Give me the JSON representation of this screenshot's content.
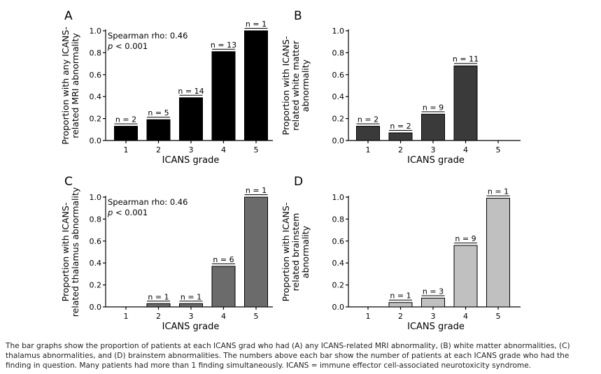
{
  "caption": "The bar graphs show the proportion of patients at each ICANS grad who had (A) any ICANS-related MRI abnormality, (B) white matter abnormalities, (C) thalamus abnormalities, and (D) brainstem abnormalities. The numbers above each bar show the number of patients at each ICANS grade who had the finding in question. Many patients had more than 1 finding simultaneously. ICANS = immune effector cell-associated neurotoxicity syndrome.",
  "chart_data": [
    {
      "panel": "A",
      "type": "bar",
      "categories": [
        "1",
        "2",
        "3",
        "4",
        "5"
      ],
      "values": [
        0.13,
        0.19,
        0.39,
        0.81,
        1.0
      ],
      "bar_labels": [
        "n = 2",
        "n = 5",
        "n = 14",
        "n = 13",
        "n = 1"
      ],
      "xlabel": "ICANS grade",
      "ylabel": [
        "Proportion with any ICANS-",
        "related MRI abnormality"
      ],
      "annotation": [
        "Spearman rho: 0.46",
        "p < 0.001"
      ],
      "ylim": [
        0,
        1.0
      ],
      "yticks": [
        "0.0",
        "0.2",
        "0.4",
        "0.6",
        "0.8",
        "1.0"
      ],
      "color": "#000000"
    },
    {
      "panel": "B",
      "type": "bar",
      "categories": [
        "1",
        "2",
        "3",
        "4",
        "5"
      ],
      "values": [
        0.13,
        0.07,
        0.24,
        0.68,
        null
      ],
      "bar_labels": [
        "n = 2",
        "n = 2",
        "n = 9",
        "n = 11",
        ""
      ],
      "xlabel": "ICANS grade",
      "ylabel": [
        "Proportion with ICANS-",
        "related white matter",
        "abnormality"
      ],
      "annotation": [],
      "ylim": [
        0,
        1.0
      ],
      "yticks": [
        "0.0",
        "0.2",
        "0.4",
        "0.6",
        "0.8",
        "1.0"
      ],
      "color": "#3a3a3a"
    },
    {
      "panel": "C",
      "type": "bar",
      "categories": [
        "1",
        "2",
        "3",
        "4",
        "5"
      ],
      "values": [
        null,
        0.03,
        0.03,
        0.37,
        1.0
      ],
      "bar_labels": [
        "",
        "n = 1",
        "n = 1",
        "n = 6",
        "n = 1"
      ],
      "xlabel": "ICANS grade",
      "ylabel": [
        "Proportion with ICANS-",
        "related thalamus abnormality"
      ],
      "annotation": [
        "Spearman rho: 0.46",
        "p < 0.001"
      ],
      "ylim": [
        0,
        1.0
      ],
      "yticks": [
        "0.0",
        "0.2",
        "0.4",
        "0.6",
        "0.8",
        "1.0"
      ],
      "color": "#6b6b6b"
    },
    {
      "panel": "D",
      "type": "bar",
      "categories": [
        "1",
        "2",
        "3",
        "4",
        "5"
      ],
      "values": [
        null,
        0.04,
        0.08,
        0.56,
        0.99
      ],
      "bar_labels": [
        "",
        "n = 1",
        "n = 3",
        "n = 9",
        "n = 1"
      ],
      "xlabel": "ICANS grade",
      "ylabel": [
        "Proportion with ICANS-",
        "related brainstem",
        "abnormality"
      ],
      "annotation": [],
      "ylim": [
        0,
        1.0
      ],
      "yticks": [
        "0.0",
        "0.2",
        "0.4",
        "0.6",
        "0.8",
        "1.0"
      ],
      "color": "#c0c0c0"
    }
  ]
}
